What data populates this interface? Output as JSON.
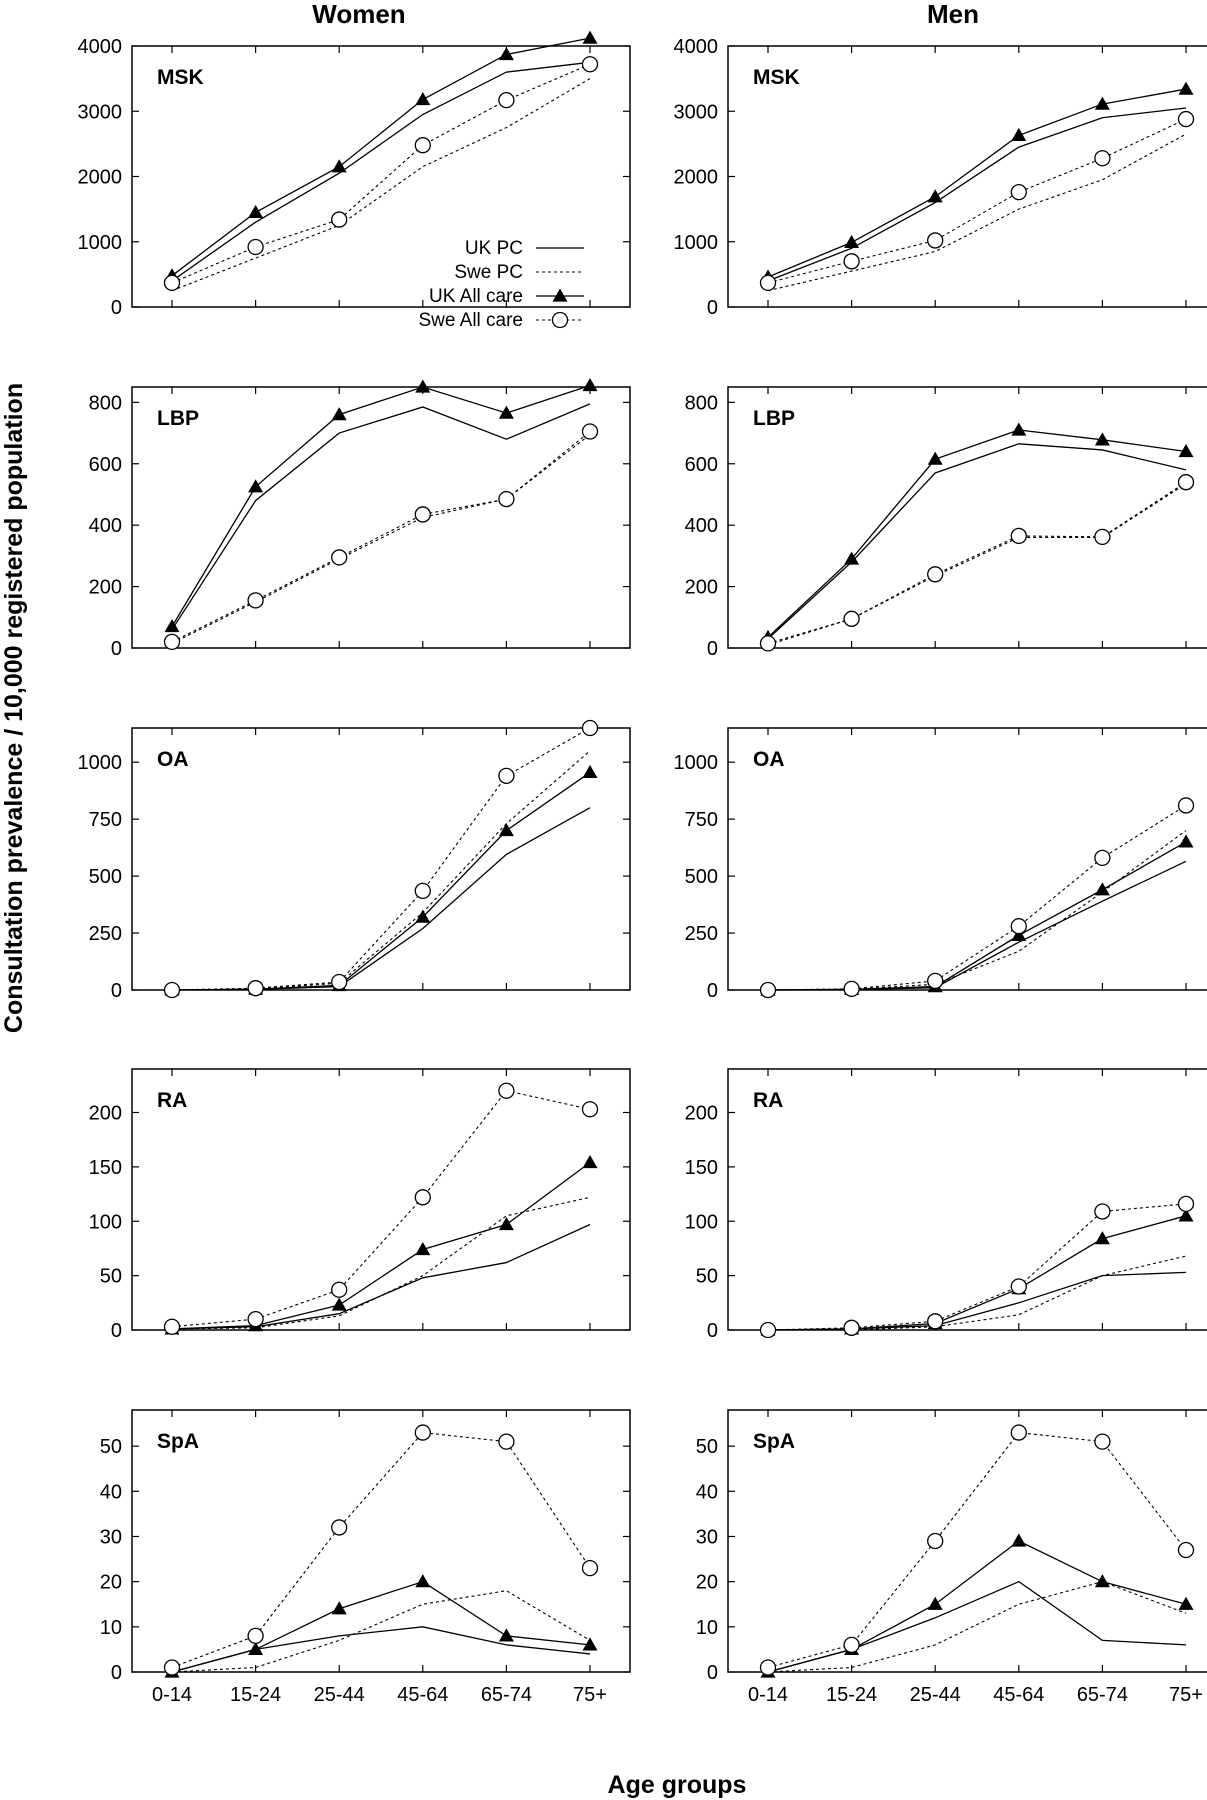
{
  "figure": {
    "column_titles": [
      "Women",
      "Men"
    ],
    "ylabel": "Consultation prevalence / 10,000 registered population",
    "xlabel": "Age groups"
  },
  "legend": {
    "placement": "inside top-left panel (Women MSK), lower right",
    "entries": [
      {
        "key": "uk_pc",
        "label": "UK PC",
        "line": "solid",
        "marker": "none"
      },
      {
        "key": "swe_pc",
        "label": "Swe PC",
        "line": "dotted",
        "marker": "none"
      },
      {
        "key": "uk_all",
        "label": "UK All care",
        "line": "solid",
        "marker": "filled-triangle"
      },
      {
        "key": "swe_all",
        "label": "Swe All care",
        "line": "dotted",
        "marker": "open-circle"
      }
    ]
  },
  "chart_data": [
    {
      "type": "line",
      "title": "MSK",
      "column": "Women",
      "categories": [
        "0-14",
        "15-24",
        "25-44",
        "45-64",
        "65-74",
        "75+"
      ],
      "ylim": [
        0,
        4000
      ],
      "yticks": [
        0,
        1000,
        2000,
        3000,
        4000
      ],
      "series": [
        {
          "name": "UK PC",
          "values": [
            400,
            1300,
            2050,
            2950,
            3600,
            3750
          ]
        },
        {
          "name": "Swe PC",
          "values": [
            250,
            750,
            1250,
            2150,
            2750,
            3500
          ]
        },
        {
          "name": "UK All care",
          "values": [
            480,
            1450,
            2150,
            3180,
            3870,
            4120
          ]
        },
        {
          "name": "Swe All care",
          "values": [
            370,
            920,
            1340,
            2480,
            3170,
            3720
          ]
        }
      ]
    },
    {
      "type": "line",
      "title": "MSK",
      "column": "Men",
      "categories": [
        "0-14",
        "15-24",
        "25-44",
        "45-64",
        "65-74",
        "75+"
      ],
      "ylim": [
        0,
        4000
      ],
      "yticks": [
        0,
        1000,
        2000,
        3000,
        4000
      ],
      "series": [
        {
          "name": "UK PC",
          "values": [
            400,
            900,
            1600,
            2450,
            2900,
            3050
          ]
        },
        {
          "name": "Swe PC",
          "values": [
            250,
            550,
            850,
            1500,
            1950,
            2650
          ]
        },
        {
          "name": "UK All care",
          "values": [
            460,
            990,
            1690,
            2630,
            3110,
            3340
          ]
        },
        {
          "name": "Swe All care",
          "values": [
            370,
            700,
            1020,
            1760,
            2280,
            2880
          ]
        }
      ]
    },
    {
      "type": "line",
      "title": "LBP",
      "column": "Women",
      "categories": [
        "0-14",
        "15-24",
        "25-44",
        "45-64",
        "65-74",
        "75+"
      ],
      "ylim": [
        0,
        850
      ],
      "yticks": [
        0,
        200,
        400,
        600,
        800
      ],
      "series": [
        {
          "name": "UK PC",
          "values": [
            60,
            480,
            700,
            785,
            680,
            795
          ]
        },
        {
          "name": "Swe PC",
          "values": [
            15,
            150,
            290,
            425,
            485,
            695
          ]
        },
        {
          "name": "UK All care",
          "values": [
            70,
            525,
            760,
            850,
            765,
            855
          ]
        },
        {
          "name": "Swe All care",
          "values": [
            20,
            155,
            295,
            435,
            485,
            705
          ]
        }
      ]
    },
    {
      "type": "line",
      "title": "LBP",
      "column": "Men",
      "categories": [
        "0-14",
        "15-24",
        "25-44",
        "45-64",
        "65-74",
        "75+"
      ],
      "ylim": [
        0,
        850
      ],
      "yticks": [
        0,
        200,
        400,
        600,
        800
      ],
      "series": [
        {
          "name": "UK PC",
          "values": [
            30,
            280,
            570,
            665,
            645,
            580
          ]
        },
        {
          "name": "Swe PC",
          "values": [
            10,
            95,
            235,
            360,
            360,
            535
          ]
        },
        {
          "name": "UK All care",
          "values": [
            35,
            290,
            615,
            710,
            678,
            640
          ]
        },
        {
          "name": "Swe All care",
          "values": [
            15,
            95,
            240,
            365,
            362,
            540
          ]
        }
      ]
    },
    {
      "type": "line",
      "title": "OA",
      "column": "Women",
      "categories": [
        "0-14",
        "15-24",
        "25-44",
        "45-64",
        "65-74",
        "75+"
      ],
      "ylim": [
        0,
        1150
      ],
      "yticks": [
        0,
        250,
        500,
        750,
        1000
      ],
      "series": [
        {
          "name": "UK PC",
          "values": [
            0,
            3,
            15,
            270,
            595,
            800
          ]
        },
        {
          "name": "Swe PC",
          "values": [
            0,
            5,
            30,
            340,
            730,
            1050
          ]
        },
        {
          "name": "UK All care",
          "values": [
            0,
            4,
            20,
            320,
            700,
            955
          ]
        },
        {
          "name": "Swe All care",
          "values": [
            0,
            8,
            35,
            435,
            940,
            1150
          ]
        }
      ]
    },
    {
      "type": "line",
      "title": "OA",
      "column": "Men",
      "categories": [
        "0-14",
        "15-24",
        "25-44",
        "45-64",
        "65-74",
        "75+"
      ],
      "ylim": [
        0,
        1150
      ],
      "yticks": [
        0,
        250,
        500,
        750,
        1000
      ],
      "series": [
        {
          "name": "UK PC",
          "values": [
            0,
            2,
            10,
            210,
            390,
            565
          ]
        },
        {
          "name": "Swe PC",
          "values": [
            0,
            3,
            25,
            170,
            430,
            700
          ]
        },
        {
          "name": "UK All care",
          "values": [
            0,
            3,
            15,
            240,
            440,
            650
          ]
        },
        {
          "name": "Swe All care",
          "values": [
            0,
            5,
            40,
            280,
            580,
            810
          ]
        }
      ]
    },
    {
      "type": "line",
      "title": "RA",
      "column": "Women",
      "categories": [
        "0-14",
        "15-24",
        "25-44",
        "45-64",
        "65-74",
        "75+"
      ],
      "ylim": [
        0,
        240
      ],
      "yticks": [
        0,
        50,
        100,
        150,
        200
      ],
      "series": [
        {
          "name": "UK PC",
          "values": [
            1,
            3,
            15,
            48,
            62,
            97
          ]
        },
        {
          "name": "Swe PC",
          "values": [
            1,
            2,
            13,
            50,
            105,
            122
          ]
        },
        {
          "name": "UK All care",
          "values": [
            1,
            4,
            23,
            74,
            97,
            154
          ]
        },
        {
          "name": "Swe All care",
          "values": [
            3,
            10,
            37,
            122,
            220,
            203
          ]
        }
      ]
    },
    {
      "type": "line",
      "title": "RA",
      "column": "Men",
      "categories": [
        "0-14",
        "15-24",
        "25-44",
        "45-64",
        "65-74",
        "75+"
      ],
      "ylim": [
        0,
        240
      ],
      "yticks": [
        0,
        50,
        100,
        150,
        200
      ],
      "series": [
        {
          "name": "UK PC",
          "values": [
            0,
            1,
            4,
            25,
            50,
            53
          ]
        },
        {
          "name": "Swe PC",
          "values": [
            0,
            0,
            3,
            14,
            50,
            68
          ]
        },
        {
          "name": "UK All care",
          "values": [
            0,
            1,
            6,
            38,
            84,
            105
          ]
        },
        {
          "name": "Swe All care",
          "values": [
            0,
            2,
            8,
            40,
            109,
            116
          ]
        }
      ]
    },
    {
      "type": "line",
      "title": "SpA",
      "column": "Women",
      "categories": [
        "0-14",
        "15-24",
        "25-44",
        "45-64",
        "65-74",
        "75+"
      ],
      "ylim": [
        0,
        58
      ],
      "yticks": [
        0,
        10,
        20,
        30,
        40,
        50
      ],
      "series": [
        {
          "name": "UK PC",
          "values": [
            0,
            5,
            8,
            10,
            6,
            4
          ]
        },
        {
          "name": "Swe PC",
          "values": [
            0,
            1,
            7,
            15,
            18,
            7
          ]
        },
        {
          "name": "UK All care",
          "values": [
            0,
            5,
            14,
            20,
            8,
            6
          ]
        },
        {
          "name": "Swe All care",
          "values": [
            1,
            8,
            32,
            53,
            51,
            23
          ]
        }
      ]
    },
    {
      "type": "line",
      "title": "SpA",
      "column": "Men",
      "categories": [
        "0-14",
        "15-24",
        "25-44",
        "45-64",
        "65-74",
        "75+"
      ],
      "ylim": [
        0,
        58
      ],
      "yticks": [
        0,
        10,
        20,
        30,
        40,
        50
      ],
      "series": [
        {
          "name": "UK PC",
          "values": [
            0,
            5,
            12,
            20,
            7,
            6
          ]
        },
        {
          "name": "Swe PC",
          "values": [
            0,
            1,
            6,
            15,
            20,
            13
          ]
        },
        {
          "name": "UK All care",
          "values": [
            0,
            5,
            15,
            29,
            20,
            15
          ]
        },
        {
          "name": "Swe All care",
          "values": [
            1,
            6,
            29,
            53,
            51,
            27
          ]
        }
      ]
    }
  ]
}
